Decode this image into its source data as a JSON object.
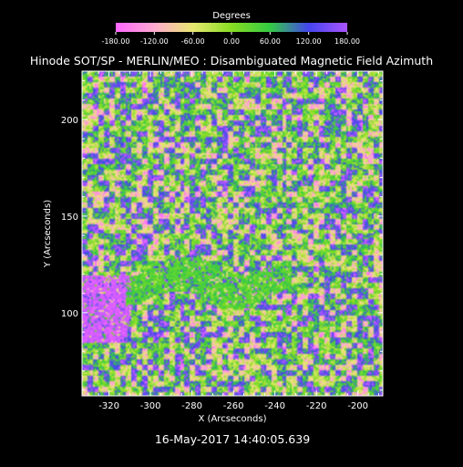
{
  "chart_data": {
    "type": "heatmap",
    "title": "Hinode SOT/SP - MERLIN/MEO : Disambiguated Magnetic Field Azimuth",
    "xlabel": "X (Arcseconds)",
    "ylabel": "Y (Arcseconds)",
    "xlim": [
      -333,
      -188
    ],
    "ylim": [
      57,
      225
    ],
    "x_ticks": [
      -320,
      -300,
      -280,
      -260,
      -240,
      -220,
      -200
    ],
    "x_tick_labels": [
      "-320",
      "-300",
      "-280",
      "-260",
      "-240",
      "-220",
      "-200"
    ],
    "y_ticks": [
      100,
      150,
      200
    ],
    "y_tick_labels": [
      "100",
      "150",
      "200"
    ],
    "colorbar": {
      "title": "Degrees",
      "range": [
        -180,
        180
      ],
      "ticks": [
        -180,
        -120,
        -60,
        0,
        60,
        120,
        180
      ],
      "tick_labels": [
        "-180.00",
        "-120.00",
        "-60.00",
        "0.00",
        "60.00",
        "120.00",
        "180.00"
      ],
      "colors": [
        "#ff66ff",
        "#ffaad0",
        "#e8e870",
        "#88dd22",
        "#33cc44",
        "#4444ee",
        "#aa55ff"
      ]
    },
    "grid": false,
    "legend": "none"
  },
  "footer": {
    "timestamp": "16-May-2017 14:40:05.639"
  }
}
